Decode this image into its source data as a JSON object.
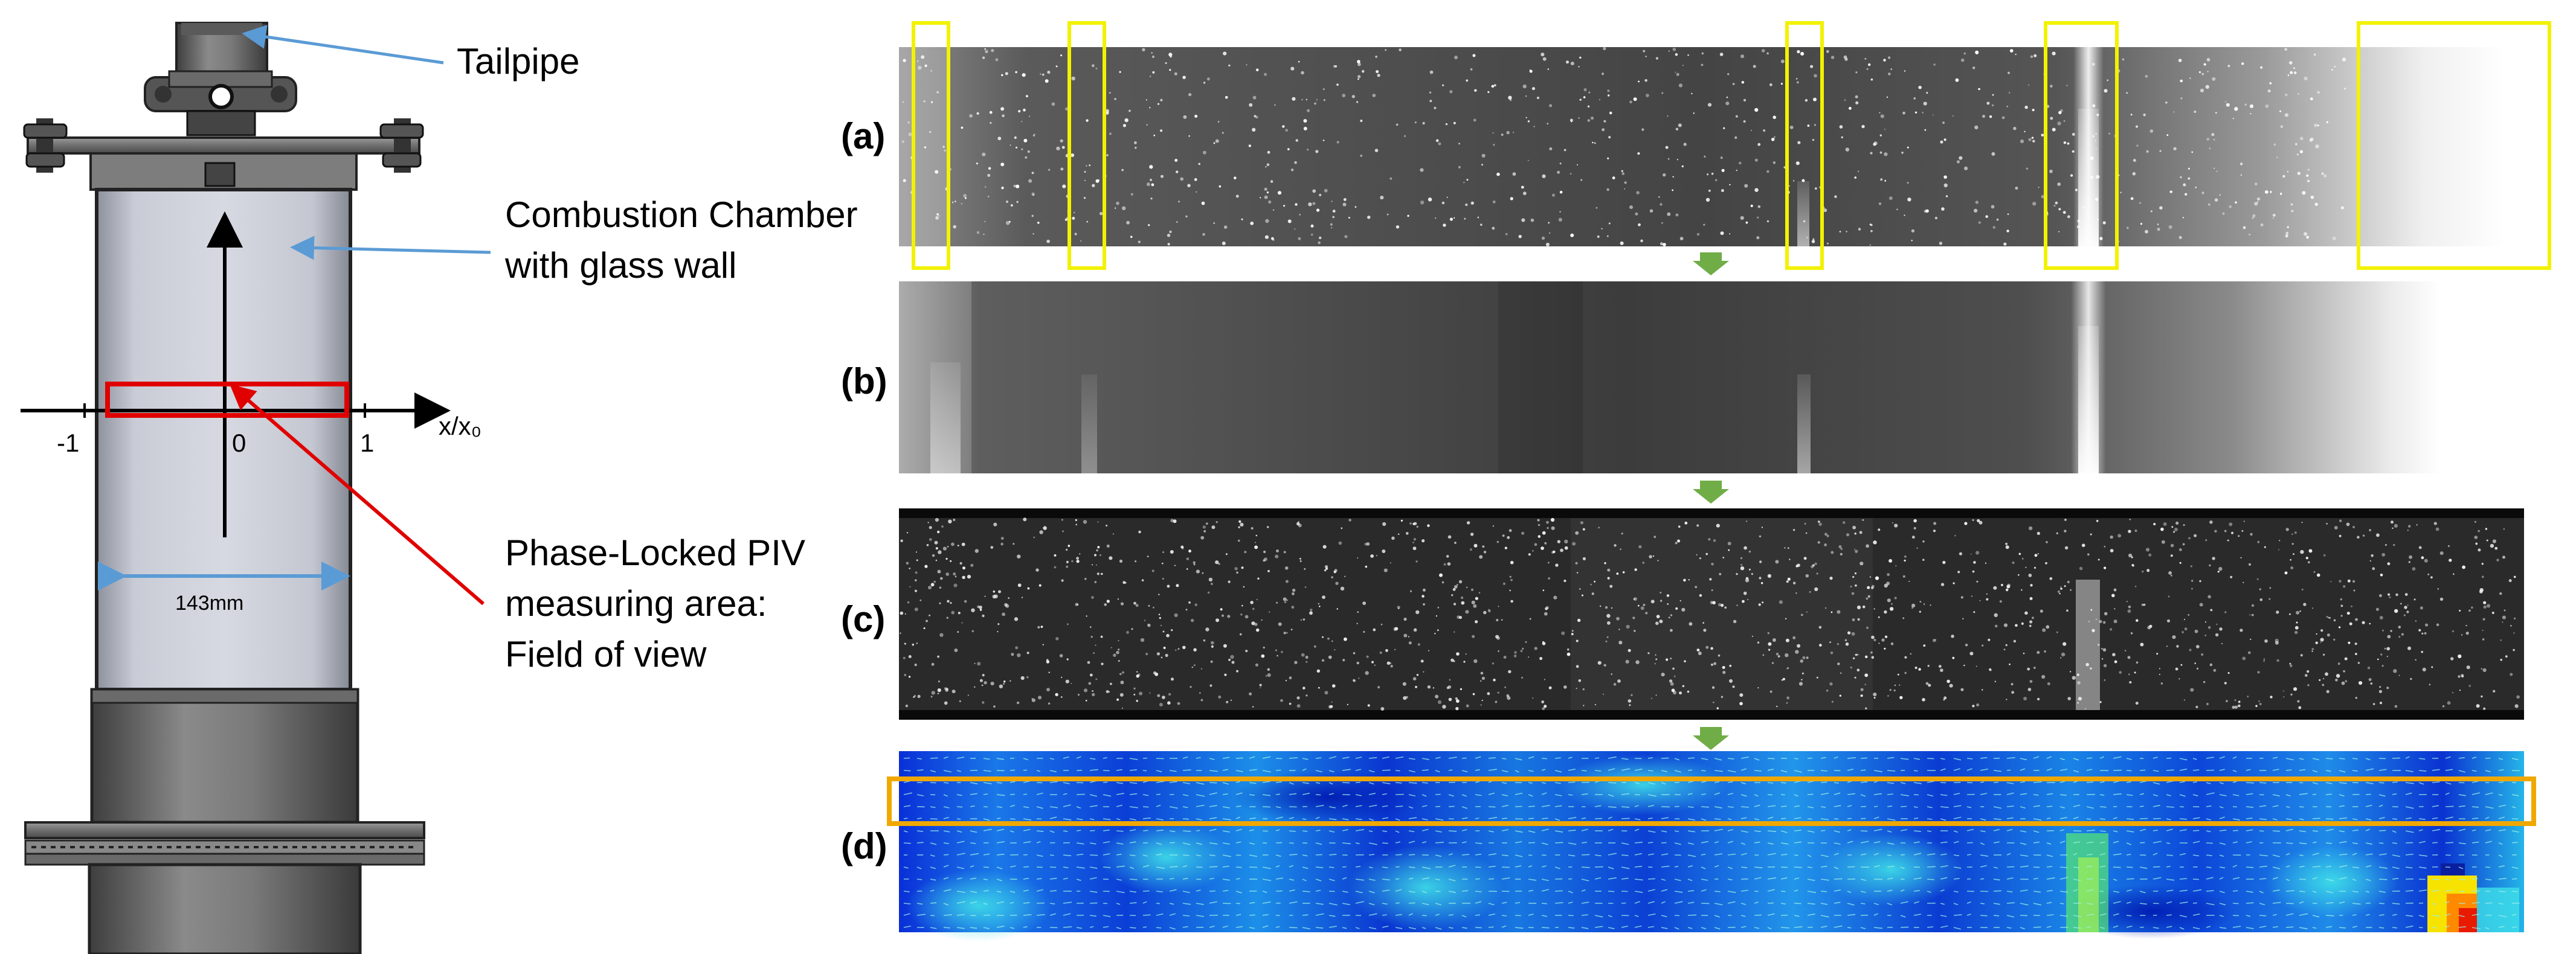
{
  "left_schematic": {
    "tailpipe_label": "Tailpipe",
    "chamber_label_line1": "Combustion Chamber",
    "chamber_label_line2": "with glass wall",
    "fov_label_line1": "Phase-Locked PIV",
    "fov_label_line2": "measuring area:",
    "fov_label_line3": "Field of view",
    "axis_label": "x/x₀",
    "tick_neg1": "-1",
    "tick_0": "0",
    "tick_1": "1",
    "width_label": "143mm"
  },
  "panels": {
    "a": "(a)",
    "b": "(b)",
    "c": "(c)",
    "d": "(d)"
  },
  "colors": {
    "highlight_box": "#f2f200",
    "roi_box": "#f0a800",
    "fov_box": "#e00000",
    "leader_line": "#5b9bd5",
    "step_arrow": "#70ad47",
    "fov_pointer": "#e00000"
  }
}
